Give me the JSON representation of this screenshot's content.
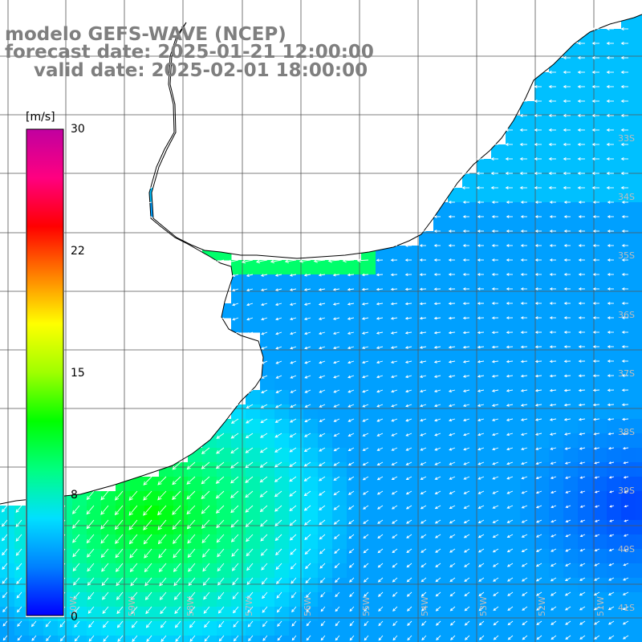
{
  "title": {
    "model": "modelo GEFS-WAVE (NCEP)",
    "forecast": "forecast date: 2025-01-21 12:00:00",
    "valid": "valid date: 2025-02-01 18:00:00"
  },
  "colorbar": {
    "unit": "[m/s]",
    "min": 0,
    "max": 30,
    "labels": [
      "30",
      "22",
      "15",
      "8",
      "0"
    ],
    "label_values": [
      30,
      22,
      15,
      8,
      0
    ],
    "colors": [
      "#0000ff",
      "#0080ff",
      "#00e0ff",
      "#00ff80",
      "#00ff00",
      "#a0ff00",
      "#ffff00",
      "#ff8000",
      "#ff0000",
      "#ff0080",
      "#c000a0"
    ]
  },
  "lat_labels": [
    "33S",
    "34S",
    "35S",
    "36S",
    "37S",
    "38S",
    "39S",
    "40S",
    "41S"
  ],
  "lon_labels": [
    "60W",
    "59W",
    "58W",
    "57W",
    "56W",
    "55W",
    "54W",
    "53W",
    "52W",
    "51W"
  ],
  "colors": {
    "land": "#ffffff",
    "coast": "#000000",
    "grid": "#555555",
    "arrow": "#ffffff",
    "title": "#7f7f7f"
  },
  "wind_field": {
    "description_values": "wind speed in m/s, roughly 3-12 across the domain",
    "coastal_band_speed": 12,
    "offshore_speed": 4
  }
}
